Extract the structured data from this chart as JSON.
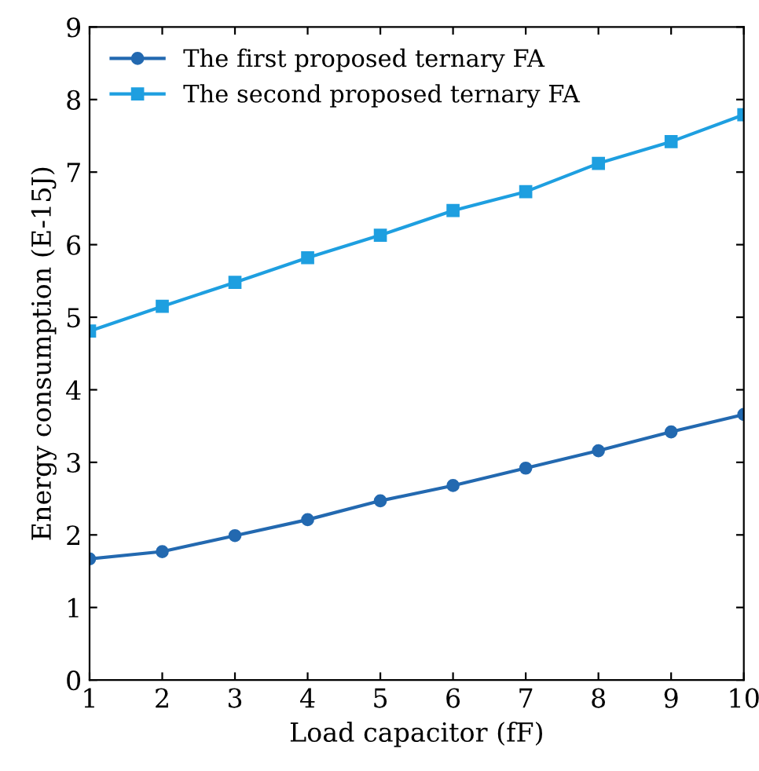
{
  "chart_data": {
    "type": "line",
    "xlabel": "Load capacitor (fF)",
    "ylabel": "Energy consumption (E-15J)",
    "x": [
      1,
      2,
      3,
      4,
      5,
      6,
      7,
      8,
      9,
      10
    ],
    "series": [
      {
        "name": "The first proposed ternary FA",
        "color": "#2369b0",
        "marker": "circle",
        "values": [
          1.67,
          1.77,
          1.99,
          2.21,
          2.47,
          2.68,
          2.92,
          3.16,
          3.42,
          3.66
        ]
      },
      {
        "name": "The second proposed ternary FA",
        "color": "#1e9fe0",
        "marker": "square",
        "values": [
          4.81,
          5.15,
          5.48,
          5.82,
          6.13,
          6.47,
          6.73,
          7.12,
          7.42,
          7.79
        ]
      }
    ],
    "xlim": [
      1,
      10
    ],
    "ylim": [
      0,
      9
    ],
    "xticks": [
      1,
      2,
      3,
      4,
      5,
      6,
      7,
      8,
      9,
      10
    ],
    "yticks": [
      0,
      1,
      2,
      3,
      4,
      5,
      6,
      7,
      8,
      9
    ],
    "grid": false,
    "legend": "top left",
    "line_style": "solid"
  }
}
